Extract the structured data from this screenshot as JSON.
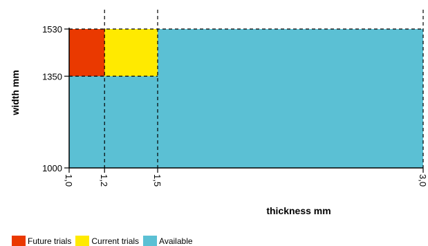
{
  "chart_data": {
    "type": "area",
    "title": "",
    "xlabel": "thickness mm",
    "ylabel": "width mm",
    "x_ticks": [
      "1,0",
      "1,2",
      "1,5",
      "3,0"
    ],
    "x_tick_values": [
      1.0,
      1.2,
      1.5,
      3.0
    ],
    "y_ticks": [
      "1000",
      "1350",
      "1530"
    ],
    "y_tick_values": [
      1000,
      1350,
      1530
    ],
    "regions": [
      {
        "name": "Available",
        "x": [
          1.0,
          3.0
        ],
        "y": [
          1000,
          1530
        ],
        "color": "#5bc0d4"
      },
      {
        "name": "Current trials",
        "x": [
          1.2,
          1.5
        ],
        "y": [
          1350,
          1530
        ],
        "color": "#ffea00"
      },
      {
        "name": "Future trials",
        "x": [
          1.0,
          1.2
        ],
        "y": [
          1350,
          1530
        ],
        "color": "#ea3900"
      }
    ],
    "legend": {
      "position": "bottom-left",
      "items": [
        {
          "label": "Future trials",
          "color": "#ea3900"
        },
        {
          "label": "Current trials",
          "color": "#ffea00"
        },
        {
          "label": "Available",
          "color": "#5bc0d4"
        }
      ]
    },
    "grid": false
  }
}
